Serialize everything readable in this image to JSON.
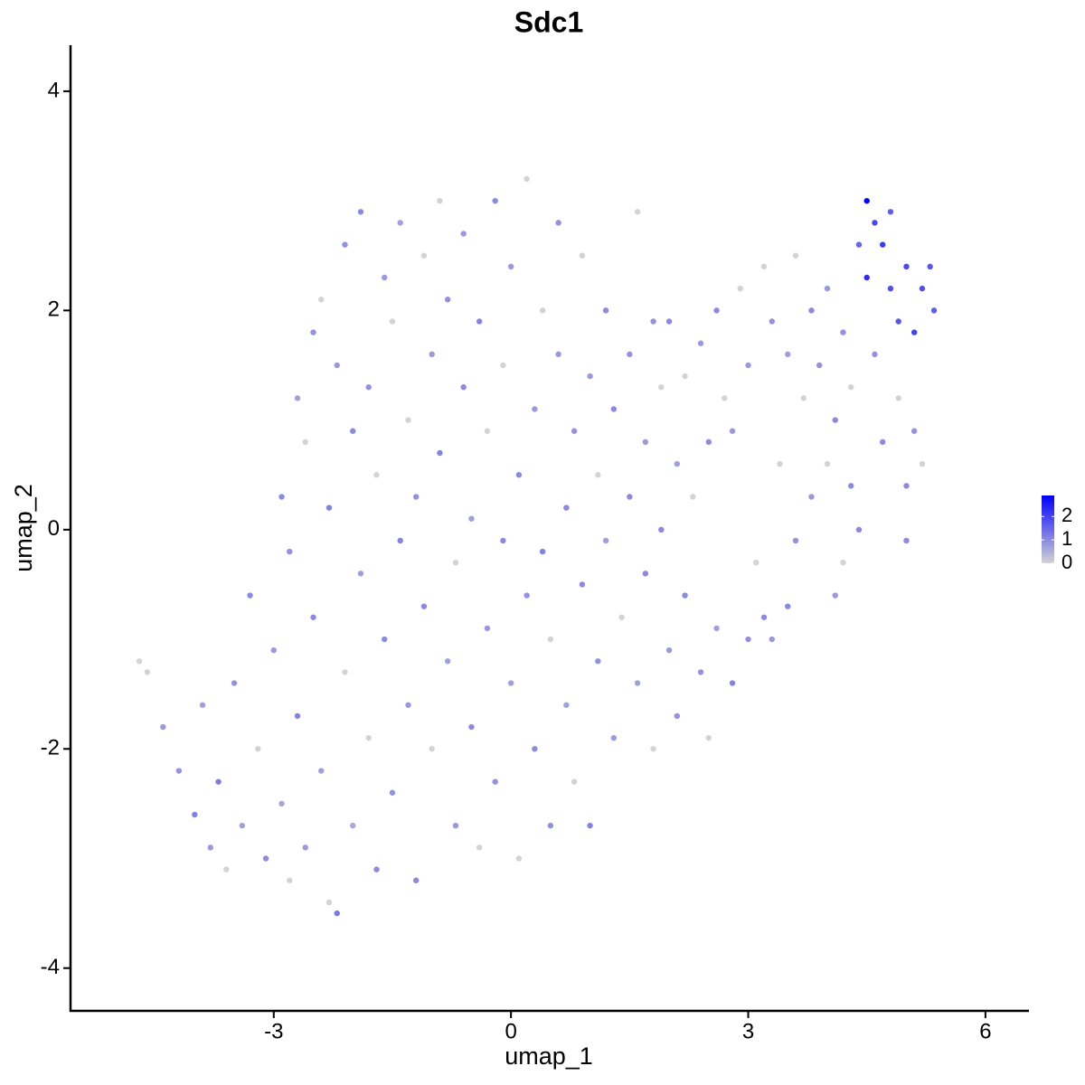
{
  "chart_data": {
    "type": "scatter",
    "title": "Sdc1",
    "x_label": "umap_1",
    "y_label": "umap_2",
    "xlim": [
      -5.57,
      6.55
    ],
    "ylim": [
      -4.39,
      4.42
    ],
    "xticks": [
      -3,
      0,
      3,
      6
    ],
    "yticks": [
      -4,
      -2,
      0,
      2,
      4
    ],
    "color_low": "#d3d3d3",
    "color_high": "#0000ff",
    "colorbar_lim": [
      0,
      2.9
    ],
    "colorbar_ticks": [
      0,
      1,
      2
    ],
    "x": [
      -4.7,
      -4.6,
      -4.4,
      -4.2,
      -4.0,
      -3.9,
      -3.8,
      -3.7,
      -3.6,
      -3.5,
      -3.4,
      -3.3,
      -3.2,
      -3.1,
      -3.0,
      -2.9,
      -2.9,
      -2.8,
      -2.8,
      -2.7,
      -2.7,
      -2.6,
      -2.6,
      -2.5,
      -2.5,
      -2.4,
      -2.4,
      -2.3,
      -2.3,
      -2.2,
      -2.2,
      -2.1,
      -2.1,
      -2.0,
      -2.0,
      -1.9,
      -1.9,
      -1.8,
      -1.8,
      -1.7,
      -1.7,
      -1.6,
      -1.6,
      -1.5,
      -1.5,
      -1.4,
      -1.4,
      -1.3,
      -1.3,
      -1.2,
      -1.2,
      -1.1,
      -1.1,
      -1.0,
      -1.0,
      -0.9,
      -0.9,
      -0.8,
      -0.8,
      -0.7,
      -0.7,
      -0.6,
      -0.6,
      -0.5,
      -0.5,
      -0.4,
      -0.4,
      -0.3,
      -0.3,
      -0.2,
      -0.2,
      -0.1,
      -0.1,
      0.0,
      0.0,
      0.1,
      0.1,
      0.2,
      0.2,
      0.3,
      0.3,
      0.4,
      0.4,
      0.5,
      0.5,
      0.6,
      0.6,
      0.7,
      0.7,
      0.8,
      0.8,
      0.9,
      0.9,
      1.0,
      1.0,
      1.1,
      1.1,
      1.2,
      1.2,
      1.3,
      1.3,
      1.4,
      1.5,
      1.5,
      1.6,
      1.6,
      1.7,
      1.7,
      1.8,
      1.8,
      1.9,
      1.9,
      2.0,
      2.0,
      2.1,
      2.1,
      2.2,
      2.2,
      2.3,
      2.4,
      2.4,
      2.5,
      2.5,
      2.6,
      2.6,
      2.7,
      2.8,
      2.8,
      2.9,
      3.0,
      3.0,
      3.1,
      3.2,
      3.2,
      3.3,
      3.3,
      3.4,
      3.5,
      3.5,
      3.6,
      3.6,
      3.7,
      3.8,
      3.8,
      3.9,
      4.0,
      4.0,
      4.1,
      4.2,
      4.2,
      4.3,
      4.3,
      4.4,
      4.4,
      4.5,
      4.5,
      4.6,
      4.6,
      4.7,
      4.7,
      4.8,
      4.8,
      4.9,
      4.9,
      5.0,
      5.0,
      5.1,
      5.1,
      5.2,
      5.2,
      5.3,
      5.35,
      5.0,
      4.1
    ],
    "y": [
      -1.2,
      -1.3,
      -1.8,
      -2.2,
      -2.6,
      -1.6,
      -2.9,
      -2.3,
      -3.1,
      -1.4,
      -2.7,
      -0.6,
      -2.0,
      -3.0,
      -1.1,
      0.3,
      -2.5,
      -3.2,
      -0.2,
      1.2,
      -1.7,
      0.8,
      -2.9,
      1.8,
      -0.8,
      2.1,
      -2.2,
      -3.4,
      0.2,
      1.5,
      -3.5,
      -1.3,
      2.6,
      -2.7,
      0.9,
      -0.4,
      2.9,
      -1.9,
      1.3,
      -3.1,
      0.5,
      2.3,
      -1.0,
      -2.4,
      1.9,
      -0.1,
      2.8,
      -1.6,
      1.0,
      -3.2,
      0.3,
      2.5,
      -0.7,
      1.6,
      -2.0,
      3.0,
      0.7,
      -1.2,
      2.1,
      -2.7,
      -0.3,
      1.3,
      2.7,
      -1.8,
      0.1,
      -2.9,
      1.9,
      -0.9,
      0.9,
      3.0,
      -2.3,
      -0.1,
      1.5,
      -1.4,
      2.4,
      -3.0,
      0.5,
      -0.6,
      3.2,
      1.1,
      -2.0,
      2.0,
      -0.2,
      -2.7,
      -1.0,
      1.6,
      2.8,
      0.2,
      -1.6,
      -2.3,
      0.9,
      2.5,
      -0.5,
      1.4,
      -2.7,
      -1.2,
      0.5,
      2.0,
      -0.1,
      -1.9,
      1.1,
      -0.8,
      1.6,
      0.3,
      -1.4,
      2.9,
      0.8,
      -0.4,
      1.9,
      -2.0,
      0.0,
      1.3,
      -1.1,
      1.9,
      0.6,
      -1.7,
      1.4,
      -0.6,
      0.3,
      -1.3,
      1.7,
      0.8,
      -1.9,
      -0.9,
      2.0,
      1.2,
      -1.4,
      0.9,
      2.2,
      -1.0,
      1.5,
      -0.3,
      -0.8,
      2.4,
      1.9,
      -1.0,
      0.6,
      -0.7,
      1.6,
      2.5,
      -0.1,
      1.2,
      0.3,
      2.0,
      1.5,
      0.6,
      2.2,
      1.0,
      -0.3,
      1.8,
      0.4,
      1.3,
      2.6,
      0.0,
      3.0,
      2.3,
      1.6,
      2.8,
      2.6,
      0.8,
      2.2,
      2.9,
      1.9,
      1.2,
      2.4,
      0.4,
      1.8,
      0.9,
      2.2,
      0.6,
      2.4,
      2.0,
      -0.1,
      -0.6
    ],
    "values": [
      0,
      0,
      0.8,
      0.9,
      1.1,
      0.7,
      0.8,
      1.2,
      0,
      0.9,
      0.7,
      1.0,
      0,
      1.0,
      0.8,
      1.0,
      0.6,
      0,
      0.9,
      0.7,
      1.1,
      0,
      0.8,
      0.9,
      1.0,
      0,
      0.7,
      0,
      1.1,
      0.8,
      1.2,
      0,
      0.9,
      0.6,
      1.0,
      0.7,
      1.0,
      0,
      0.9,
      1.0,
      0,
      0.8,
      1.0,
      0.9,
      0,
      1.1,
      0.7,
      0.8,
      0,
      1.0,
      0.9,
      0,
      1.0,
      0.8,
      0,
      0,
      1.1,
      0.7,
      0.9,
      0.8,
      0,
      1.0,
      0.8,
      1.0,
      0.7,
      0,
      1.1,
      0.8,
      0,
      1.0,
      0.9,
      1.0,
      0,
      0.7,
      0.8,
      0,
      1.0,
      0.9,
      0,
      0.8,
      1.0,
      0,
      1.1,
      0.9,
      0,
      0.8,
      0.9,
      1.0,
      0.7,
      0,
      0.9,
      0,
      1.0,
      0.8,
      1.1,
      0.9,
      0,
      1.0,
      0.7,
      0.8,
      1.0,
      0,
      0.9,
      1.0,
      0.7,
      0,
      0.8,
      1.0,
      0.9,
      0,
      1.0,
      0,
      0.8,
      1.0,
      0.7,
      0.9,
      0,
      1.0,
      0,
      0.9,
      0.8,
      1.0,
      0,
      0.7,
      1.0,
      0,
      1.1,
      0.8,
      0,
      0.9,
      0.8,
      0,
      1.0,
      0,
      0.9,
      0.8,
      0,
      1.0,
      0.7,
      0,
      0.9,
      0,
      0.8,
      1.0,
      0.9,
      0,
      0.8,
      1.0,
      0,
      0.9,
      1.0,
      0,
      1.5,
      1.0,
      2.9,
      2.3,
      0.9,
      1.9,
      2.1,
      1.0,
      1.8,
      1.6,
      1.7,
      0,
      1.9,
      1.0,
      2.0,
      0.9,
      1.8,
      0,
      1.7,
      1.6,
      1.0,
      0.8
    ]
  }
}
